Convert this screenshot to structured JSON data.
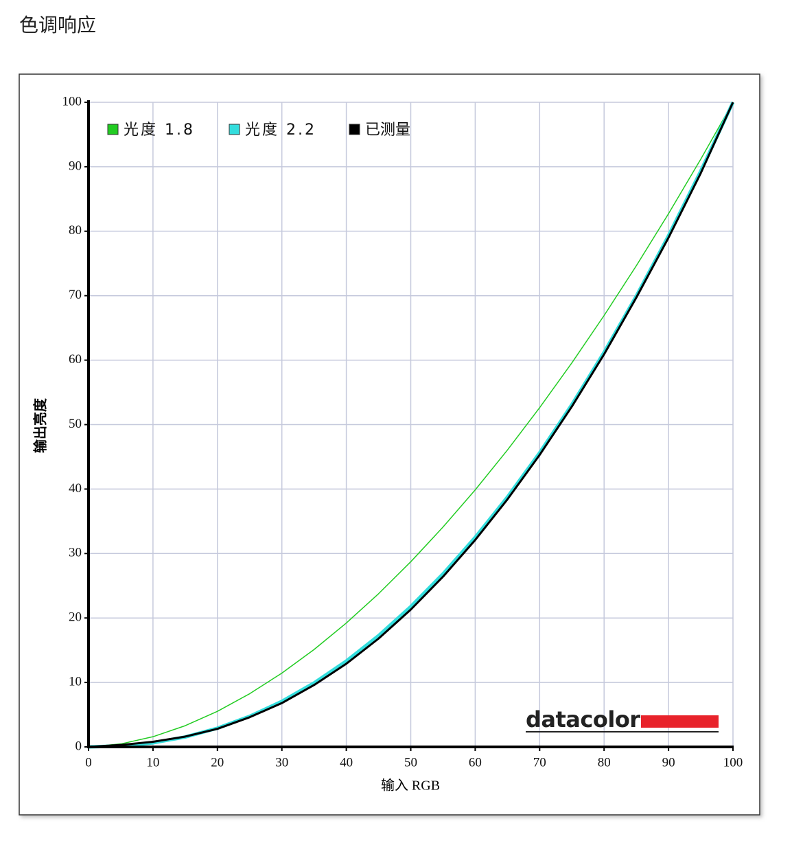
{
  "chart_data": {
    "type": "line",
    "title": "色调响应",
    "xlabel": "输入 RGB",
    "ylabel": "输出亮度",
    "watermark": "datacolor",
    "x": [
      0,
      5,
      10,
      15,
      20,
      25,
      30,
      35,
      40,
      45,
      50,
      55,
      60,
      65,
      70,
      75,
      80,
      85,
      90,
      95,
      100
    ],
    "series": [
      {
        "name": "光度 1.8",
        "color": "#22cc22",
        "values": [
          0,
          0.46,
          1.58,
          3.29,
          5.52,
          8.25,
          11.45,
          15.11,
          19.22,
          23.76,
          28.72,
          34.1,
          39.87,
          46.05,
          52.63,
          59.58,
          66.92,
          74.64,
          82.72,
          91.18,
          100
        ]
      },
      {
        "name": "光度 2.2",
        "color": "#33dddd",
        "values": [
          0,
          0.14,
          0.63,
          1.54,
          2.9,
          4.74,
          7.07,
          9.93,
          13.32,
          17.26,
          21.76,
          26.84,
          32.5,
          38.76,
          45.63,
          53.1,
          61.21,
          69.94,
          79.31,
          89.33,
          100
        ]
      },
      {
        "name": "已测量",
        "color": "#000000",
        "values": [
          0,
          0.3,
          0.8,
          1.6,
          2.8,
          4.6,
          6.8,
          9.6,
          12.9,
          16.8,
          21.3,
          26.4,
          32.1,
          38.4,
          45.3,
          52.8,
          60.9,
          69.7,
          79.0,
          89.0,
          100
        ]
      }
    ],
    "xlim": [
      0,
      100
    ],
    "ylim": [
      0,
      100
    ],
    "xticks": [
      0,
      10,
      20,
      30,
      40,
      50,
      60,
      70,
      80,
      90,
      100
    ],
    "yticks": [
      0,
      10,
      20,
      30,
      40,
      50,
      60,
      70,
      80,
      90,
      100
    ],
    "grid": true,
    "legend": "top"
  }
}
